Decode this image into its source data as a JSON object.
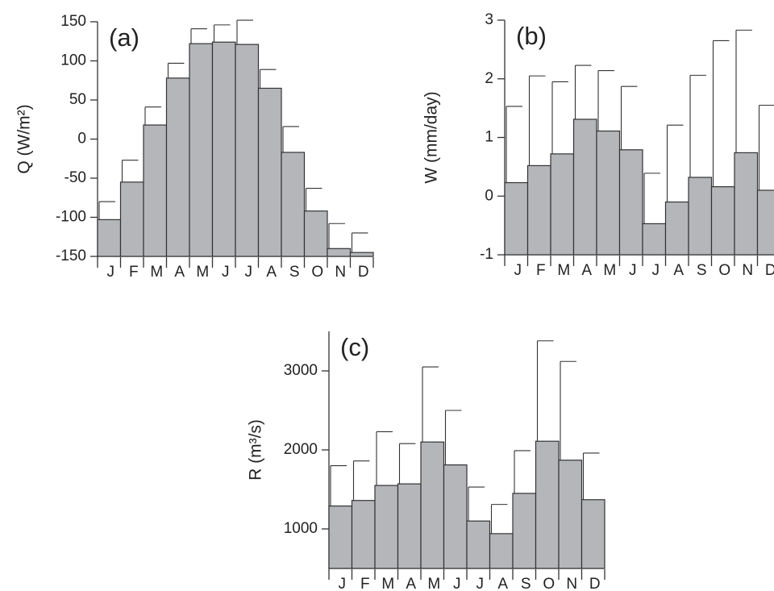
{
  "chart_data": [
    {
      "type": "bar",
      "title": "(a)",
      "y_label": "Q (W/m²)",
      "color": "#b4b6ba",
      "categories": [
        "J",
        "F",
        "M",
        "A",
        "M",
        "J",
        "J",
        "A",
        "S",
        "O",
        "N",
        "D"
      ],
      "values": [
        -103,
        -55,
        18,
        78,
        122,
        124,
        121,
        65,
        -17,
        -92,
        -140,
        -145
      ],
      "errors": [
        23,
        28,
        23,
        19,
        19,
        22,
        31,
        24,
        33,
        29,
        32,
        25
      ],
      "ylim": [
        -150,
        150
      ],
      "yticks": [
        -150,
        -100,
        -50,
        0,
        50,
        100,
        150
      ]
    },
    {
      "type": "bar",
      "title": "(b)",
      "y_label": "W (mm/day)",
      "color": "#b4b6ba",
      "categories": [
        "J",
        "F",
        "M",
        "A",
        "M",
        "J",
        "J",
        "A",
        "S",
        "O",
        "N",
        "D"
      ],
      "values": [
        0.23,
        0.52,
        0.72,
        1.31,
        1.11,
        0.79,
        -0.47,
        -0.1,
        0.32,
        0.16,
        0.74,
        0.1
      ],
      "errors": [
        1.3,
        1.53,
        1.23,
        0.92,
        1.03,
        1.08,
        0.86,
        1.31,
        1.74,
        2.49,
        2.09,
        1.45
      ],
      "ylim": [
        -1,
        3
      ],
      "yticks": [
        -1,
        0,
        1,
        2,
        3
      ]
    },
    {
      "type": "bar",
      "title": "(c)",
      "y_label": "R (m³/s)",
      "color": "#b4b6ba",
      "categories": [
        "J",
        "F",
        "M",
        "A",
        "M",
        "J",
        "J",
        "A",
        "S",
        "O",
        "N",
        "D"
      ],
      "values": [
        1290,
        1360,
        1550,
        1570,
        2100,
        1810,
        1100,
        940,
        1450,
        2110,
        1870,
        1370
      ],
      "errors": [
        510,
        500,
        680,
        510,
        950,
        690,
        430,
        370,
        540,
        1270,
        1250,
        590
      ],
      "ylim": [
        500,
        3500
      ],
      "yticks": [
        1000,
        2000,
        3000
      ]
    }
  ]
}
